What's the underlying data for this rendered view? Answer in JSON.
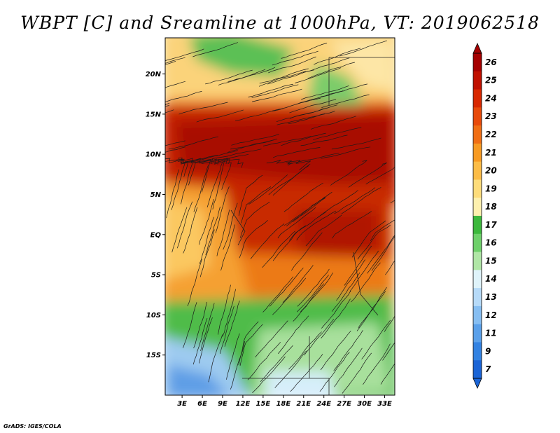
{
  "title": "WBPT [C] and Sreamline at 1000hPa, VT: 2019062518",
  "footer": "GrADS: IGES/COLA",
  "map": {
    "lat_ticks": [
      "20N",
      "15N",
      "10N",
      "5N",
      "EQ",
      "5S",
      "10S",
      "15S"
    ],
    "lon_ticks": [
      "3E",
      "6E",
      "9E",
      "12E",
      "15E",
      "18E",
      "21E",
      "24E",
      "27E",
      "30E",
      "33E"
    ],
    "lat_values": [
      20,
      15,
      10,
      5,
      0,
      -5,
      -10,
      -15
    ],
    "lon_values": [
      3,
      6,
      9,
      12,
      15,
      18,
      21,
      24,
      27,
      30,
      33
    ],
    "lat_range": [
      -20,
      24.5
    ],
    "lon_range": [
      0.5,
      34.5
    ]
  },
  "colorbar": {
    "labels": [
      "26",
      "25",
      "24",
      "23",
      "22",
      "21",
      "20",
      "19",
      "18",
      "17",
      "16",
      "15",
      "14",
      "13",
      "12",
      "11",
      "9",
      "7"
    ],
    "colors": [
      "#a50000",
      "#c01000",
      "#d82800",
      "#e84a0a",
      "#f06e14",
      "#f79a22",
      "#fcbc46",
      "#fddc7a",
      "#fdf0ae",
      "#3cb83c",
      "#6ed06a",
      "#b0e6a6",
      "#dff3fa",
      "#b6daf8",
      "#86bef2",
      "#5aa0ea",
      "#3282e2",
      "#1a64d6"
    ]
  },
  "field_colors": {
    "hot_core": "#b01800",
    "hot": "#d43a08",
    "warm": "#ef7a1c",
    "mild": "#fbc050",
    "pale": "#fde8a0",
    "green": "#4cbc48",
    "light_green": "#a6e09a",
    "cool_blue": "#9ac8f0",
    "blue": "#5c9ee6"
  }
}
